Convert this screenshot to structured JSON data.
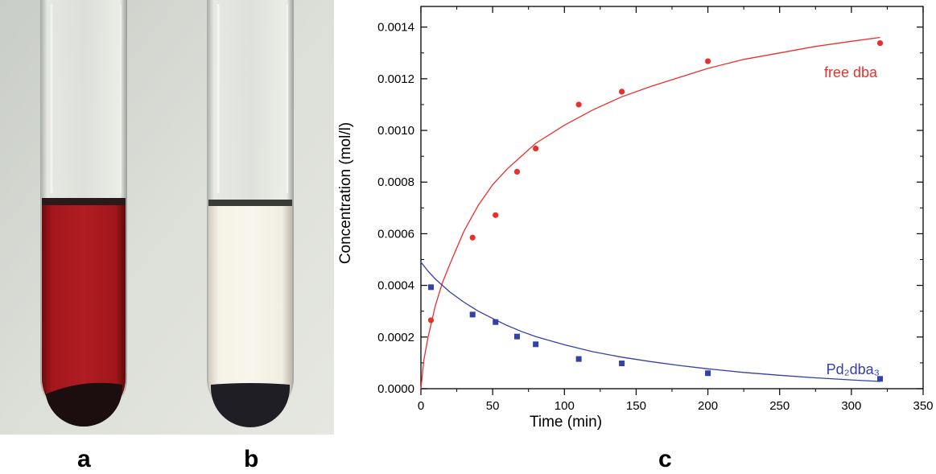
{
  "panels": {
    "a": "a",
    "b": "b",
    "c": "c"
  },
  "colors": {
    "free_dba": "#e8312e",
    "pd2dba3": "#3340a6",
    "solution_a": "#9c1218",
    "solution_b": "#f2eedf"
  },
  "chart_data": {
    "type": "scatter",
    "xlabel": "Time (min)",
    "ylabel": "Concentration (mol/l)",
    "xlim": [
      0,
      350
    ],
    "ylim": [
      0,
      0.00148
    ],
    "x_ticks": [
      "0",
      "50",
      "100",
      "150",
      "200",
      "250",
      "300",
      "350"
    ],
    "x_tick_values": [
      0,
      50,
      100,
      150,
      200,
      250,
      300,
      350
    ],
    "y_ticks": [
      "0.0000",
      "0.0002",
      "0.0004",
      "0.0006",
      "0.0008",
      "0.0010",
      "0.0012",
      "0.0014"
    ],
    "y_tick_values": [
      0,
      0.0002,
      0.0004,
      0.0006,
      0.0008,
      0.001,
      0.0012,
      0.0014
    ],
    "grid": false,
    "series": [
      {
        "name": "free dba",
        "marker": "circle",
        "color": "#e8312e",
        "points": [
          [
            7,
            0.000265
          ],
          [
            36,
            0.000585
          ],
          [
            52,
            0.000672
          ],
          [
            67,
            0.00084
          ],
          [
            80,
            0.00093
          ],
          [
            110,
            0.0011
          ],
          [
            140,
            0.00115
          ],
          [
            200,
            0.001268
          ],
          [
            320,
            0.001338
          ]
        ],
        "fit_curve": [
          [
            0,
            0
          ],
          [
            2,
            0.00011
          ],
          [
            5,
            0.0002
          ],
          [
            10,
            0.00032
          ],
          [
            15,
            0.00041
          ],
          [
            20,
            0.00048
          ],
          [
            30,
            0.00061
          ],
          [
            40,
            0.00071
          ],
          [
            50,
            0.00079
          ],
          [
            60,
            0.00085
          ],
          [
            70,
            0.0009
          ],
          [
            80,
            0.00095
          ],
          [
            100,
            0.00102
          ],
          [
            120,
            0.00108
          ],
          [
            140,
            0.00113
          ],
          [
            160,
            0.00117
          ],
          [
            180,
            0.001205
          ],
          [
            200,
            0.00124
          ],
          [
            225,
            0.001275
          ],
          [
            250,
            0.0013
          ],
          [
            275,
            0.001325
          ],
          [
            300,
            0.001345
          ],
          [
            320,
            0.00136
          ]
        ]
      },
      {
        "name": "Pd₂dba₃",
        "marker": "square",
        "color": "#3340a6",
        "points": [
          [
            7,
            0.000393
          ],
          [
            36,
            0.000287
          ],
          [
            52,
            0.000258
          ],
          [
            67,
            0.000202
          ],
          [
            80,
            0.000172
          ],
          [
            110,
            0.000115
          ],
          [
            140,
            9.8e-05
          ],
          [
            200,
            6e-05
          ],
          [
            320,
            3.8e-05
          ]
        ],
        "fit_curve": [
          [
            0,
            0.00049
          ],
          [
            5,
            0.000455
          ],
          [
            10,
            0.000425
          ],
          [
            20,
            0.000375
          ],
          [
            30,
            0.000335
          ],
          [
            40,
            0.0003
          ],
          [
            50,
            0.000272
          ],
          [
            60,
            0.000245
          ],
          [
            70,
            0.000222
          ],
          [
            80,
            0.000202
          ],
          [
            100,
            0.00017
          ],
          [
            120,
            0.000143
          ],
          [
            140,
            0.000122
          ],
          [
            160,
            0.000105
          ],
          [
            180,
            9e-05
          ],
          [
            200,
            7.7e-05
          ],
          [
            225,
            6.3e-05
          ],
          [
            250,
            5.2e-05
          ],
          [
            275,
            4.2e-05
          ],
          [
            300,
            3.4e-05
          ],
          [
            320,
            2.8e-05
          ]
        ]
      }
    ]
  }
}
